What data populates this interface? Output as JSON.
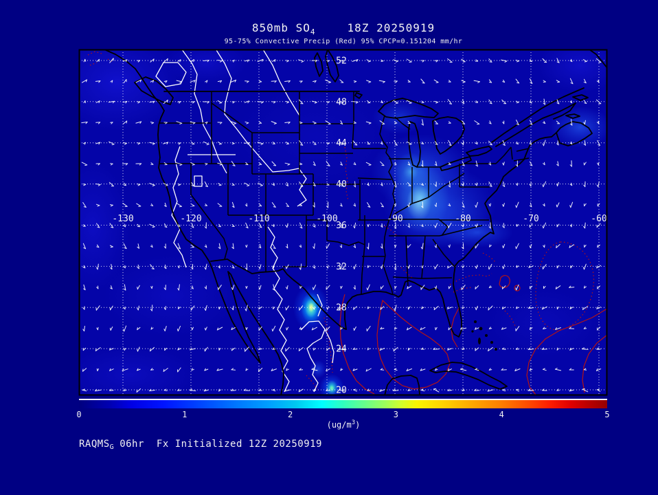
{
  "header": {
    "title_left": "850mb SO",
    "title_sub": "4",
    "title_right": "18Z 20250919",
    "subtitle": "95-75% Convective Precip (Red) 95% CPCP=0.151204 mm/hr"
  },
  "footer": {
    "model": "RAQMS",
    "model_sub": "G",
    "fhr": "06hr",
    "init": "Fx Initialized 12Z 20250919"
  },
  "axes": {
    "lat_ticks": [
      52,
      48,
      44,
      40,
      36,
      32,
      28,
      24,
      20
    ],
    "lon_ticks": [
      -130,
      -120,
      -110,
      -100,
      -90,
      -80,
      -70,
      -60
    ]
  },
  "colorbar": {
    "min": 0,
    "max": 5,
    "ticks": [
      "0",
      "1",
      "2",
      "3",
      "4",
      "5"
    ],
    "unit_prefix": "(ug/m",
    "unit_sup": "3",
    "unit_suffix": ")"
  },
  "colors": {
    "page_bg": "#000083",
    "map_base": "#0404a8",
    "grid": "#ffffff",
    "coast": "#000000",
    "so4_contour": "#ffffff",
    "precip_contour": "#b41414",
    "text": "#f2f2f2"
  },
  "chart_data": {
    "type": "heatmap",
    "title": "850mb SO4 18Z 20250919",
    "field": "SO4 concentration at 850mb",
    "unit": "ug/m3",
    "colorbar_range": [
      0,
      5
    ],
    "colorbar_tick_values": [
      0,
      1,
      2,
      3,
      4,
      5
    ],
    "lat_range_deg": [
      20,
      52
    ],
    "lon_range_deg": [
      -130,
      -60
    ],
    "grid_spacing_deg": {
      "lat": 4,
      "lon": 10
    },
    "overlays": [
      "white wind vectors (~2 deg spacing)",
      "red convective precipitation contours (solid and dotted)",
      "white SO4 contour lines",
      "black coastline and state outlines",
      "white dotted lat/lon graticule"
    ],
    "hotspots": [
      {
        "lon": -101.5,
        "lat": 28.0,
        "value_est": 3.0,
        "note": "small intense maximum with yellow-green core near Texas/Mexico border"
      },
      {
        "lon": -99.0,
        "lat": 20.2,
        "value_est": 2.0,
        "note": "cyan-core maximum at bottom edge, central Mexico"
      },
      {
        "lon": -86.5,
        "lat": 39.5,
        "value_est": 1.2,
        "note": "broad light-blue maximum over Indiana/Ohio valley and Lake Michigan"
      },
      {
        "lon": -63.0,
        "lat": 45.5,
        "value_est": 0.7,
        "note": "enhanced plume over Nova Scotia / Gulf of St. Lawrence"
      },
      {
        "lon": -77.0,
        "lat": 35.5,
        "value_est": 0.6,
        "note": "weak enhancement along Carolinas coast"
      }
    ],
    "background_value_est": 0.2
  }
}
